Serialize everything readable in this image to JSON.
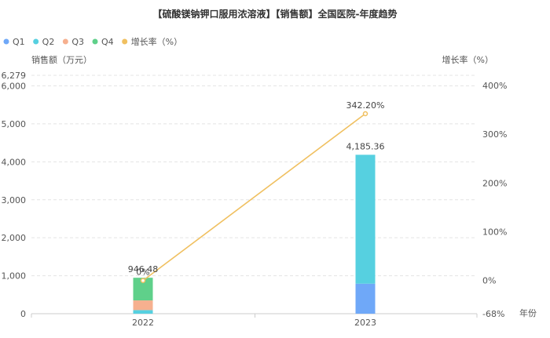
{
  "chart_data": {
    "type": "bar",
    "title": "【硫酸镁钠钾口服用浓溶液】【销售额】全国医院-年度趋势",
    "xlabel": "年份",
    "ylabel": "销售额（万元）",
    "y2label": "增长率（%）",
    "categories": [
      "2022",
      "2023"
    ],
    "legend_position": "top-left",
    "colors": {
      "Q1": "#6fa8f8",
      "Q2": "#56d0e0",
      "Q3": "#f6b08f",
      "Q4": "#5fd08a",
      "growth": "#f0c060",
      "grid": "#e4e4e4",
      "axis": "#cccccc",
      "text": "#555555"
    },
    "series": [
      {
        "name": "Q1",
        "type": "stacked-bar",
        "values": [
          0,
          790
        ]
      },
      {
        "name": "Q2",
        "type": "stacked-bar",
        "values": [
          95,
          3395.36
        ]
      },
      {
        "name": "Q3",
        "type": "stacked-bar",
        "values": [
          255,
          0
        ]
      },
      {
        "name": "Q4",
        "type": "stacked-bar",
        "values": [
          596.48,
          0
        ]
      },
      {
        "name": "增长率（%）",
        "type": "line",
        "axis": "right",
        "values": [
          0,
          342.2
        ]
      }
    ],
    "totals": [
      946.48,
      4185.36
    ],
    "total_labels": [
      "946.48",
      "4,185.36"
    ],
    "growth_labels": [
      "0%",
      "342.20%"
    ],
    "ylim": [
      0,
      6279
    ],
    "yticks": [
      0,
      1000,
      2000,
      3000,
      4000,
      5000,
      6000,
      6279
    ],
    "ytick_labels": [
      "0",
      "1,000",
      "2,000",
      "3,000",
      "4,000",
      "5,000",
      "6,000",
      "6,279"
    ],
    "y2lim": [
      -68,
      421
    ],
    "y2ticks": [
      -68,
      0,
      100,
      200,
      300,
      400
    ],
    "y2tick_labels": [
      "-68%",
      "0%",
      "100%",
      "200%",
      "300%",
      "400%"
    ],
    "grid": true
  }
}
